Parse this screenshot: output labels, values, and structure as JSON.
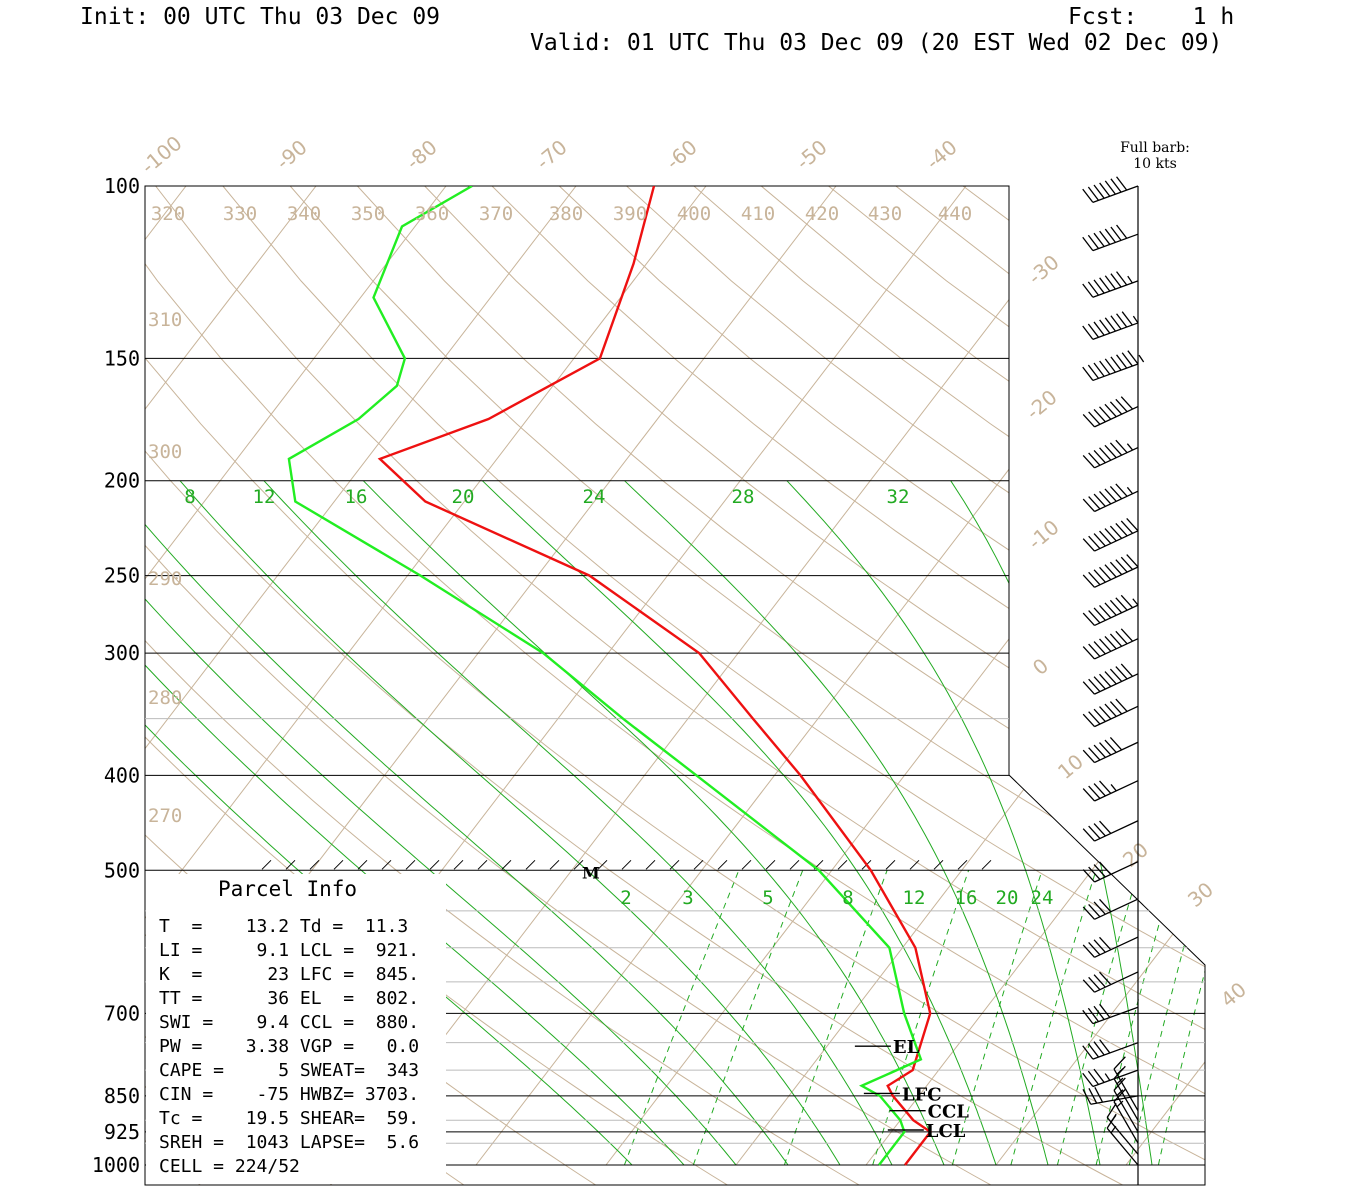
{
  "header": {
    "init": "Init: 00 UTC Thu 03 Dec 09",
    "fcst": "Fcst:    1 h",
    "valid": "Valid: 01 UTC Thu 03 Dec 09 (20 EST Wed 02 Dec 09)"
  },
  "wind_legend": [
    "Full barb:",
    "10 kts"
  ],
  "colors": {
    "temperature": "#ee1111",
    "dewpoint": "#22ee22",
    "mixing_ratio": "#22aa22",
    "adiabats": "#c8b49a",
    "isobars": "#000000",
    "aux_grid": "#bbbbbb"
  },
  "chart_data": {
    "type": "line",
    "subtype": "skew-T log-P sounding",
    "y_axis": {
      "scale": "log",
      "units": "hPa",
      "range": [
        1000,
        100
      ],
      "labels": [
        100,
        150,
        200,
        250,
        300,
        400,
        500,
        700,
        850,
        925,
        1000
      ]
    },
    "isotherm_labels": [
      -100,
      -90,
      -80,
      -70,
      -60,
      -50,
      -40,
      -30,
      -20,
      -10,
      0,
      10,
      20,
      30,
      40
    ],
    "theta_labels_top": [
      320,
      330,
      340,
      350,
      360,
      370,
      380,
      390,
      400,
      410,
      420,
      430,
      440
    ],
    "theta_labels_left": [
      310,
      300,
      290,
      280,
      270
    ],
    "mixing_ratio_labels_upper": [
      8,
      12,
      16,
      20,
      24,
      28,
      32
    ],
    "mixing_ratio_labels_lower": [
      2,
      3,
      5,
      8,
      12,
      16,
      20,
      24
    ],
    "series": [
      {
        "name": "Temperature",
        "color": "#ee1111",
        "units": "C",
        "points": [
          [
            100,
            -64
          ],
          [
            120,
            -61
          ],
          [
            150,
            -58
          ],
          [
            173,
            -63
          ],
          [
            190,
            -69
          ],
          [
            210,
            -63
          ],
          [
            250,
            -46
          ],
          [
            300,
            -33
          ],
          [
            350,
            -25
          ],
          [
            400,
            -18
          ],
          [
            500,
            -7
          ],
          [
            600,
            1
          ],
          [
            700,
            6
          ],
          [
            800,
            8
          ],
          [
            830,
            7
          ],
          [
            850,
            8
          ],
          [
            900,
            11
          ],
          [
            925,
            13
          ],
          [
            960,
            13
          ],
          [
            1000,
            13
          ]
        ]
      },
      {
        "name": "Dewpoint",
        "color": "#22ee22",
        "units": "C",
        "points": [
          [
            100,
            -78
          ],
          [
            110,
            -81
          ],
          [
            130,
            -79
          ],
          [
            150,
            -73
          ],
          [
            160,
            -72
          ],
          [
            173,
            -73
          ],
          [
            190,
            -76
          ],
          [
            210,
            -73
          ],
          [
            250,
            -59
          ],
          [
            300,
            -45
          ],
          [
            350,
            -35
          ],
          [
            400,
            -26
          ],
          [
            500,
            -11
          ],
          [
            600,
            -1
          ],
          [
            700,
            4
          ],
          [
            780,
            8
          ],
          [
            830,
            5
          ],
          [
            850,
            7
          ],
          [
            900,
            10
          ],
          [
            925,
            11
          ],
          [
            960,
            11
          ],
          [
            1000,
            11
          ]
        ]
      }
    ],
    "levels_marked": {
      "EL": 802,
      "LFC": 845,
      "CCL": 880,
      "LCL": 921
    },
    "marker_M_hPa": 500,
    "winds": [
      {
        "p": 100,
        "dir": 250,
        "spd": 70
      },
      {
        "p": 112,
        "dir": 250,
        "spd": 70
      },
      {
        "p": 125,
        "dir": 250,
        "spd": 75
      },
      {
        "p": 138,
        "dir": 250,
        "spd": 85
      },
      {
        "p": 152,
        "dir": 250,
        "spd": 95
      },
      {
        "p": 168,
        "dir": 245,
        "spd": 80
      },
      {
        "p": 185,
        "dir": 245,
        "spd": 75
      },
      {
        "p": 205,
        "dir": 245,
        "spd": 75
      },
      {
        "p": 225,
        "dir": 245,
        "spd": 90
      },
      {
        "p": 245,
        "dir": 245,
        "spd": 90
      },
      {
        "p": 268,
        "dir": 245,
        "spd": 85
      },
      {
        "p": 290,
        "dir": 245,
        "spd": 80
      },
      {
        "p": 315,
        "dir": 245,
        "spd": 80
      },
      {
        "p": 340,
        "dir": 245,
        "spd": 70
      },
      {
        "p": 370,
        "dir": 245,
        "spd": 60
      },
      {
        "p": 405,
        "dir": 245,
        "spd": 45
      },
      {
        "p": 445,
        "dir": 245,
        "spd": 40
      },
      {
        "p": 490,
        "dir": 245,
        "spd": 40
      },
      {
        "p": 535,
        "dir": 245,
        "spd": 40
      },
      {
        "p": 585,
        "dir": 245,
        "spd": 40
      },
      {
        "p": 635,
        "dir": 245,
        "spd": 40
      },
      {
        "p": 690,
        "dir": 250,
        "spd": 40
      },
      {
        "p": 750,
        "dir": 250,
        "spd": 40
      },
      {
        "p": 800,
        "dir": 250,
        "spd": 35
      },
      {
        "p": 850,
        "dir": 260,
        "spd": 30
      },
      {
        "p": 880,
        "dir": 330,
        "spd": 15
      },
      {
        "p": 900,
        "dir": 330,
        "spd": 15
      },
      {
        "p": 925,
        "dir": 330,
        "spd": 15
      },
      {
        "p": 950,
        "dir": 330,
        "spd": 15
      },
      {
        "p": 975,
        "dir": 320,
        "spd": 15
      },
      {
        "p": 1000,
        "dir": 320,
        "spd": 15
      }
    ]
  },
  "parcel_info": {
    "title": "Parcel Info",
    "rows": [
      "T  =    13.2 Td =  11.3",
      "LI =     9.1 LCL =  921.",
      "K  =      23 LFC =  845.",
      "TT =      36 EL  =  802.",
      "SWI =    9.4 CCL =  880.",
      "PW =    3.38 VGP =   0.0",
      "CAPE =     5 SWEAT=  343",
      "CIN =    -75 HWBZ= 3703.",
      "Tc =    19.5 SHEAR=  59.",
      "SREH =  1043 LAPSE=  5.6",
      "CELL = 224/52"
    ]
  }
}
